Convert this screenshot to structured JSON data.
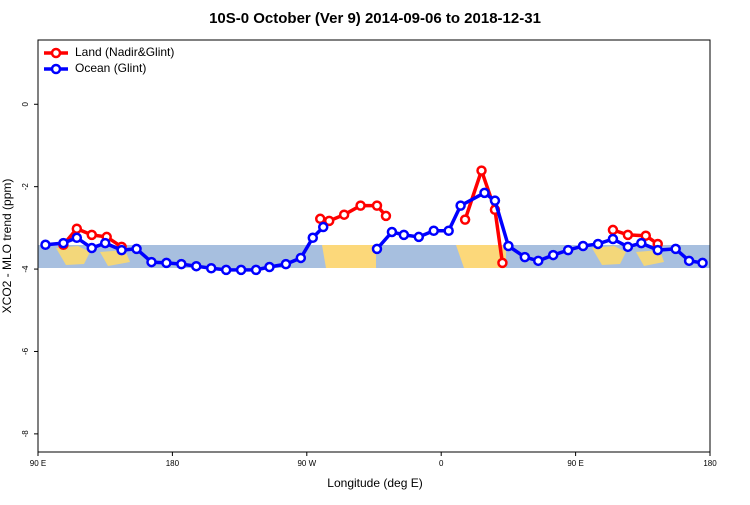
{
  "chart_data": {
    "type": "line",
    "title": "10S-0 October (Ver 9)   2014-09-06 to 2018-12-31",
    "x_label": "Longitude (deg E)",
    "y_label": "XCO2 - MLO trend (ppm)",
    "xlim": [
      90,
      540
    ],
    "xticks": [
      {
        "value": 90,
        "label": "90 E"
      },
      {
        "value": 180,
        "label": "180"
      },
      {
        "value": 270,
        "label": "90 W"
      },
      {
        "value": 360,
        "label": "0"
      },
      {
        "value": 450,
        "label": "90 E"
      },
      {
        "value": 540,
        "label": "180"
      }
    ],
    "ylim": [
      -8.44,
      1.56
    ],
    "yticks": [
      0,
      -2,
      -4,
      -6,
      -8
    ],
    "legend": "top-left",
    "series": [
      {
        "name": "Land (Nadir&Glint)",
        "color": "#ff0000",
        "x": [
          107,
          116,
          126,
          136,
          146,
          null,
          279,
          285,
          295,
          306,
          317,
          323,
          null,
          376,
          387,
          396,
          401,
          null,
          475,
          485,
          497,
          505
        ],
        "values": [
          -3.41,
          -3.02,
          -3.17,
          -3.22,
          -3.46,
          null,
          -2.78,
          -2.83,
          -2.68,
          -2.46,
          -2.46,
          -2.71,
          null,
          -2.8,
          -1.61,
          -2.56,
          -3.85,
          null,
          -3.05,
          -3.17,
          -3.19,
          -3.39
        ]
      },
      {
        "name": "Ocean (Glint)",
        "color": "#0000ff",
        "x": [
          95,
          107,
          116,
          126,
          135,
          146,
          156,
          166,
          176,
          186,
          196,
          206,
          216,
          226,
          236,
          245,
          256,
          266,
          274,
          281,
          null,
          317,
          327,
          335,
          345,
          355,
          365,
          373,
          389,
          396,
          405,
          416,
          425,
          435,
          445,
          455,
          465,
          475,
          485,
          494,
          505,
          517,
          526,
          535
        ],
        "values": [
          -3.41,
          -3.37,
          -3.24,
          -3.49,
          -3.37,
          -3.54,
          -3.51,
          -3.83,
          -3.85,
          -3.88,
          -3.93,
          -3.98,
          -4.02,
          -4.02,
          -4.02,
          -3.95,
          -3.88,
          -3.73,
          -3.24,
          -2.98,
          null,
          -3.51,
          -3.1,
          -3.17,
          -3.22,
          -3.07,
          -3.07,
          -2.46,
          -2.15,
          -2.34,
          -3.44,
          -3.71,
          -3.8,
          -3.66,
          -3.54,
          -3.44,
          -3.39,
          -3.27,
          -3.46,
          -3.37,
          -3.54,
          -3.51,
          -3.8,
          -3.85
        ]
      }
    ]
  }
}
